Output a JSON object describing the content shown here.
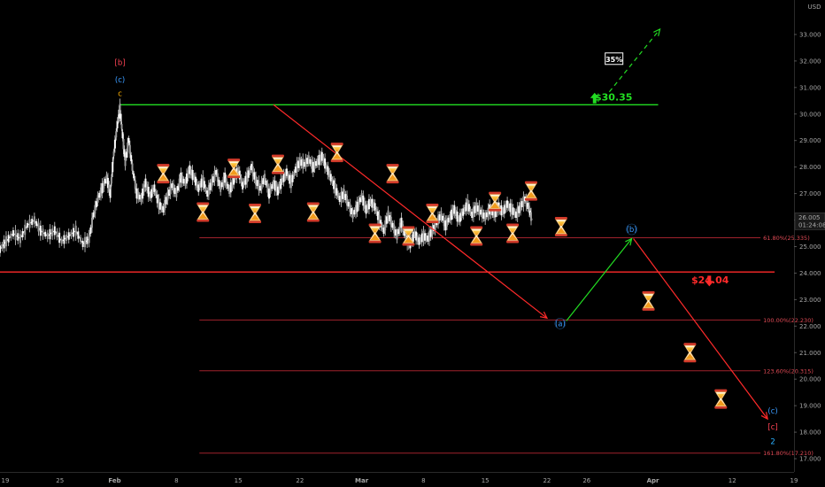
{
  "chart_data": {
    "type": "candlestick",
    "currency": "USD",
    "y_range": [
      16.5,
      34.3
    ],
    "y_ticks": [
      "33.000",
      "32.000",
      "31.000",
      "30.000",
      "29.000",
      "28.000",
      "27.000",
      "26.000",
      "25.000",
      "24.000",
      "23.000",
      "22.000",
      "21.000",
      "20.000",
      "19.000",
      "18.000",
      "17.000"
    ],
    "x_ticks": [
      {
        "label": "19",
        "x": 0.6
      },
      {
        "label": "25",
        "x": 6.8
      },
      {
        "label": "Feb",
        "x": 13
      },
      {
        "label": "8",
        "x": 20
      },
      {
        "label": "15",
        "x": 27
      },
      {
        "label": "22",
        "x": 34
      },
      {
        "label": "Mar",
        "x": 41
      },
      {
        "label": "8",
        "x": 48
      },
      {
        "label": "15",
        "x": 55
      },
      {
        "label": "22",
        "x": 62
      },
      {
        "label": "26",
        "x": 66.5
      },
      {
        "label": "Apr",
        "x": 74
      },
      {
        "label": "12",
        "x": 83
      },
      {
        "label": "19",
        "x": 90
      }
    ],
    "last_price": "26.005",
    "last_time": "01:24:08",
    "close_path": [
      [
        0,
        24.9
      ],
      [
        0.7,
        25.2
      ],
      [
        1.5,
        25.5
      ],
      [
        2.3,
        25.3
      ],
      [
        3.1,
        25.8
      ],
      [
        3.9,
        26.0
      ],
      [
        4.6,
        25.6
      ],
      [
        5.4,
        25.4
      ],
      [
        6.2,
        25.6
      ],
      [
        7.0,
        25.2
      ],
      [
        7.8,
        25.4
      ],
      [
        8.6,
        25.6
      ],
      [
        9.4,
        25.1
      ],
      [
        10.1,
        25.3
      ],
      [
        10.6,
        26.2
      ],
      [
        11.1,
        26.8
      ],
      [
        11.6,
        27.2
      ],
      [
        12.1,
        27.6
      ],
      [
        12.5,
        27.0
      ],
      [
        12.9,
        28.5
      ],
      [
        13.3,
        29.6
      ],
      [
        13.6,
        30.2
      ],
      [
        13.9,
        29.2
      ],
      [
        14.2,
        28.2
      ],
      [
        14.6,
        29.0
      ],
      [
        15.0,
        28.0
      ],
      [
        15.5,
        27.0
      ],
      [
        16.0,
        26.8
      ],
      [
        16.5,
        27.4
      ],
      [
        17.0,
        26.9
      ],
      [
        17.5,
        27.2
      ],
      [
        18.0,
        26.6
      ],
      [
        18.5,
        26.4
      ],
      [
        19.0,
        26.9
      ],
      [
        19.5,
        27.3
      ],
      [
        20.0,
        27.0
      ],
      [
        20.5,
        27.6
      ],
      [
        21.0,
        27.4
      ],
      [
        21.5,
        27.9
      ],
      [
        22.0,
        27.6
      ],
      [
        22.5,
        27.2
      ],
      [
        23.0,
        27.5
      ],
      [
        23.5,
        27.0
      ],
      [
        24.0,
        27.4
      ],
      [
        24.5,
        27.8
      ],
      [
        25.0,
        27.2
      ],
      [
        25.5,
        27.6
      ],
      [
        26.0,
        27.1
      ],
      [
        26.5,
        27.5
      ],
      [
        27.0,
        27.9
      ],
      [
        27.5,
        27.3
      ],
      [
        28.0,
        27.6
      ],
      [
        28.5,
        28.0
      ],
      [
        29.0,
        27.5
      ],
      [
        29.5,
        27.2
      ],
      [
        30.0,
        27.6
      ],
      [
        30.5,
        27.0
      ],
      [
        31.0,
        27.4
      ],
      [
        31.5,
        27.1
      ],
      [
        32.0,
        27.5
      ],
      [
        32.5,
        27.8
      ],
      [
        33.0,
        27.4
      ],
      [
        33.5,
        27.9
      ],
      [
        34.0,
        28.2
      ],
      [
        34.5,
        28.1
      ],
      [
        35.0,
        28.3
      ],
      [
        35.5,
        28.0
      ],
      [
        36.0,
        28.2
      ],
      [
        36.5,
        28.4
      ],
      [
        37.0,
        28.0
      ],
      [
        37.5,
        27.6
      ],
      [
        38.0,
        27.2
      ],
      [
        38.5,
        26.8
      ],
      [
        39.0,
        27.0
      ],
      [
        39.5,
        26.6
      ],
      [
        40.0,
        26.2
      ],
      [
        40.5,
        26.5
      ],
      [
        41.0,
        26.9
      ],
      [
        41.5,
        26.4
      ],
      [
        42.0,
        26.7
      ],
      [
        42.5,
        26.5
      ],
      [
        43.0,
        26.0
      ],
      [
        43.5,
        25.6
      ],
      [
        44.0,
        26.2
      ],
      [
        44.5,
        25.8
      ],
      [
        45.0,
        25.4
      ],
      [
        45.5,
        25.9
      ],
      [
        46.0,
        25.3
      ],
      [
        46.5,
        25.1
      ],
      [
        47.0,
        25.5
      ],
      [
        47.5,
        25.2
      ],
      [
        48.0,
        25.4
      ],
      [
        48.5,
        25.3
      ],
      [
        49.0,
        25.6
      ],
      [
        49.5,
        25.9
      ],
      [
        50.0,
        26.2
      ],
      [
        50.5,
        25.8
      ],
      [
        51.0,
        26.1
      ],
      [
        51.5,
        26.4
      ],
      [
        52.0,
        26.0
      ],
      [
        52.5,
        26.3
      ],
      [
        53.0,
        26.6
      ],
      [
        53.5,
        26.2
      ],
      [
        54.0,
        26.5
      ],
      [
        54.5,
        26.3
      ],
      [
        55.0,
        26.1
      ],
      [
        55.5,
        26.4
      ],
      [
        56.0,
        26.2
      ],
      [
        56.5,
        26.5
      ],
      [
        57.0,
        26.3
      ],
      [
        57.5,
        26.6
      ],
      [
        58.0,
        26.4
      ],
      [
        58.5,
        26.2
      ],
      [
        59.0,
        26.5
      ],
      [
        59.5,
        26.8
      ],
      [
        60.0,
        26.4
      ],
      [
        60.3,
        26.0
      ]
    ],
    "levels": [
      {
        "price": 30.35,
        "label": "$30.35",
        "color": "#22dd22",
        "x_start": 13.6,
        "x_end": 74.6
      },
      {
        "price": 24.04,
        "label": "$24.04",
        "color": "#ff2a2a",
        "x_start": 0,
        "x_end": 87.8
      }
    ],
    "fib_levels": [
      {
        "price": 25.335,
        "label": "61.80%(25.335)"
      },
      {
        "price": 22.23,
        "label": "100.00%(22.230)"
      },
      {
        "price": 20.315,
        "label": "123.60%(20.315)"
      },
      {
        "price": 17.21,
        "label": "161.80%(17.210)"
      }
    ],
    "fib_x_range": [
      22.6,
      86.2
    ],
    "wave_labels": [
      {
        "text": "[b]",
        "x": 13.6,
        "y": 31.85,
        "color": "#ff4455"
      },
      {
        "text": "(c)",
        "x": 13.6,
        "y": 31.2,
        "color": "#3a9bff"
      },
      {
        "text": "c",
        "x": 13.6,
        "y": 30.68,
        "color": "#ffb000"
      },
      {
        "text": "(a)",
        "x": 63.5,
        "y": 22.0,
        "color": "#3a9bff"
      },
      {
        "text": "(b)",
        "x": 71.6,
        "y": 25.55,
        "color": "#3a9bff"
      },
      {
        "text": "(c)",
        "x": 87.6,
        "y": 18.7,
        "color": "#3a9bff"
      },
      {
        "text": "[c]",
        "x": 87.6,
        "y": 18.1,
        "color": "#ff4455"
      },
      {
        "text": "2",
        "x": 87.6,
        "y": 17.55,
        "color": "#2ab0ff"
      }
    ],
    "projection_arrows": [
      {
        "from": [
          31.0,
          30.35
        ],
        "to": [
          62.0,
          22.3
        ],
        "color": "#ff2a2a",
        "style": "solid"
      },
      {
        "from": [
          64.2,
          22.2
        ],
        "to": [
          71.6,
          25.3
        ],
        "color": "#22dd22",
        "style": "solid"
      },
      {
        "from": [
          71.8,
          25.3
        ],
        "to": [
          87.0,
          18.5
        ],
        "color": "#ff2a2a",
        "style": "solid"
      },
      {
        "from": [
          68.5,
          30.6
        ],
        "to": [
          74.8,
          33.2
        ],
        "color": "#22dd22",
        "style": "dashed"
      }
    ],
    "percent_box": {
      "text": "35%",
      "x": 69.6,
      "y": 32.07
    },
    "up_arrow": {
      "x": 67.4,
      "y": 30.6,
      "color": "#22dd22"
    },
    "down_arrow": {
      "x": 80.4,
      "y": 23.7,
      "color": "#ff2a2a"
    },
    "hourglass_icons": [
      [
        18.5,
        27.75
      ],
      [
        23.0,
        26.3
      ],
      [
        26.5,
        27.95
      ],
      [
        28.9,
        26.25
      ],
      [
        31.5,
        28.1
      ],
      [
        35.5,
        26.3
      ],
      [
        38.2,
        28.55
      ],
      [
        42.5,
        25.5
      ],
      [
        44.5,
        27.75
      ],
      [
        46.3,
        25.4
      ],
      [
        49.0,
        26.25
      ],
      [
        54.0,
        25.4
      ],
      [
        56.1,
        26.7
      ],
      [
        58.1,
        25.5
      ],
      [
        60.2,
        27.1
      ],
      [
        63.6,
        25.75
      ],
      [
        73.5,
        22.95
      ],
      [
        78.2,
        21.0
      ],
      [
        81.7,
        19.25
      ]
    ],
    "grid": false
  }
}
